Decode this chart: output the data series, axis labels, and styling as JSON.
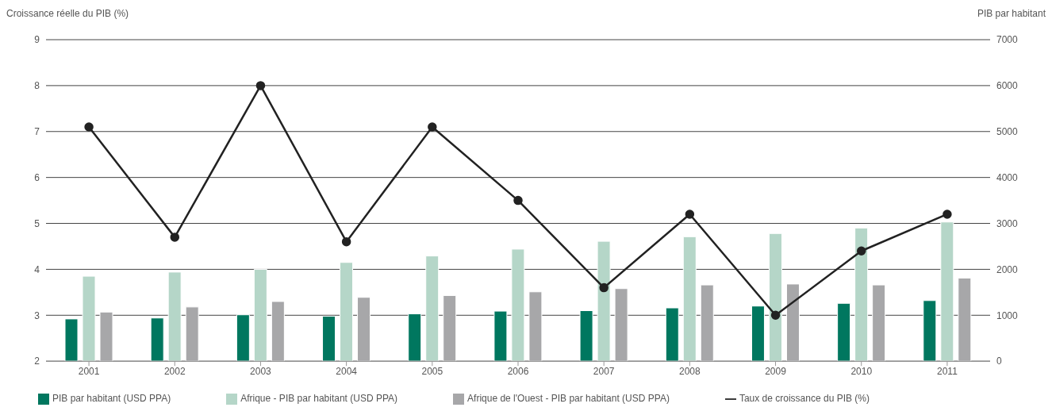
{
  "chart_data": {
    "type": "bar",
    "ylabel": "Croissance réelle du PIB (%)",
    "y2label": "PIB par habitant",
    "categories": [
      "2001",
      "2002",
      "2003",
      "2004",
      "2005",
      "2006",
      "2007",
      "2008",
      "2009",
      "2010",
      "2011"
    ],
    "series": [
      {
        "name": "PIB par habitant (USD PPA)",
        "axis": "y2",
        "color": "#00775f",
        "values": [
          920,
          940,
          1010,
          980,
          1030,
          1090,
          1100,
          1160,
          1200,
          1260,
          1320
        ]
      },
      {
        "name": "Afrique - PIB par habitant (USD PPA)",
        "axis": "y2",
        "color": "#b5d6c8",
        "values": [
          1850,
          1940,
          2000,
          2150,
          2290,
          2440,
          2610,
          2710,
          2780,
          2900,
          3030
        ]
      },
      {
        "name": "Afrique de l'Ouest - PIB par habitant (USD PPA)",
        "axis": "y2",
        "color": "#a7a7a9",
        "values": [
          1070,
          1180,
          1300,
          1390,
          1430,
          1510,
          1580,
          1660,
          1680,
          1660,
          1810
        ]
      },
      {
        "name": "Taux de croissance du PIB (%)",
        "type": "line",
        "color": "#222222",
        "values": [
          7.1,
          4.7,
          8.0,
          4.6,
          7.1,
          5.5,
          3.6,
          5.2,
          3.0,
          4.4,
          5.2
        ]
      }
    ],
    "ylim": [
      2,
      9
    ],
    "yticks": [
      2,
      3,
      4,
      5,
      6,
      7,
      8,
      9
    ],
    "y2lim": [
      0,
      7000
    ],
    "y2ticks": [
      0,
      1000,
      2000,
      3000,
      4000,
      5000,
      6000,
      7000
    ],
    "grid": "y",
    "legend": "bottom",
    "marker": "circle",
    "line_style": "solid"
  }
}
